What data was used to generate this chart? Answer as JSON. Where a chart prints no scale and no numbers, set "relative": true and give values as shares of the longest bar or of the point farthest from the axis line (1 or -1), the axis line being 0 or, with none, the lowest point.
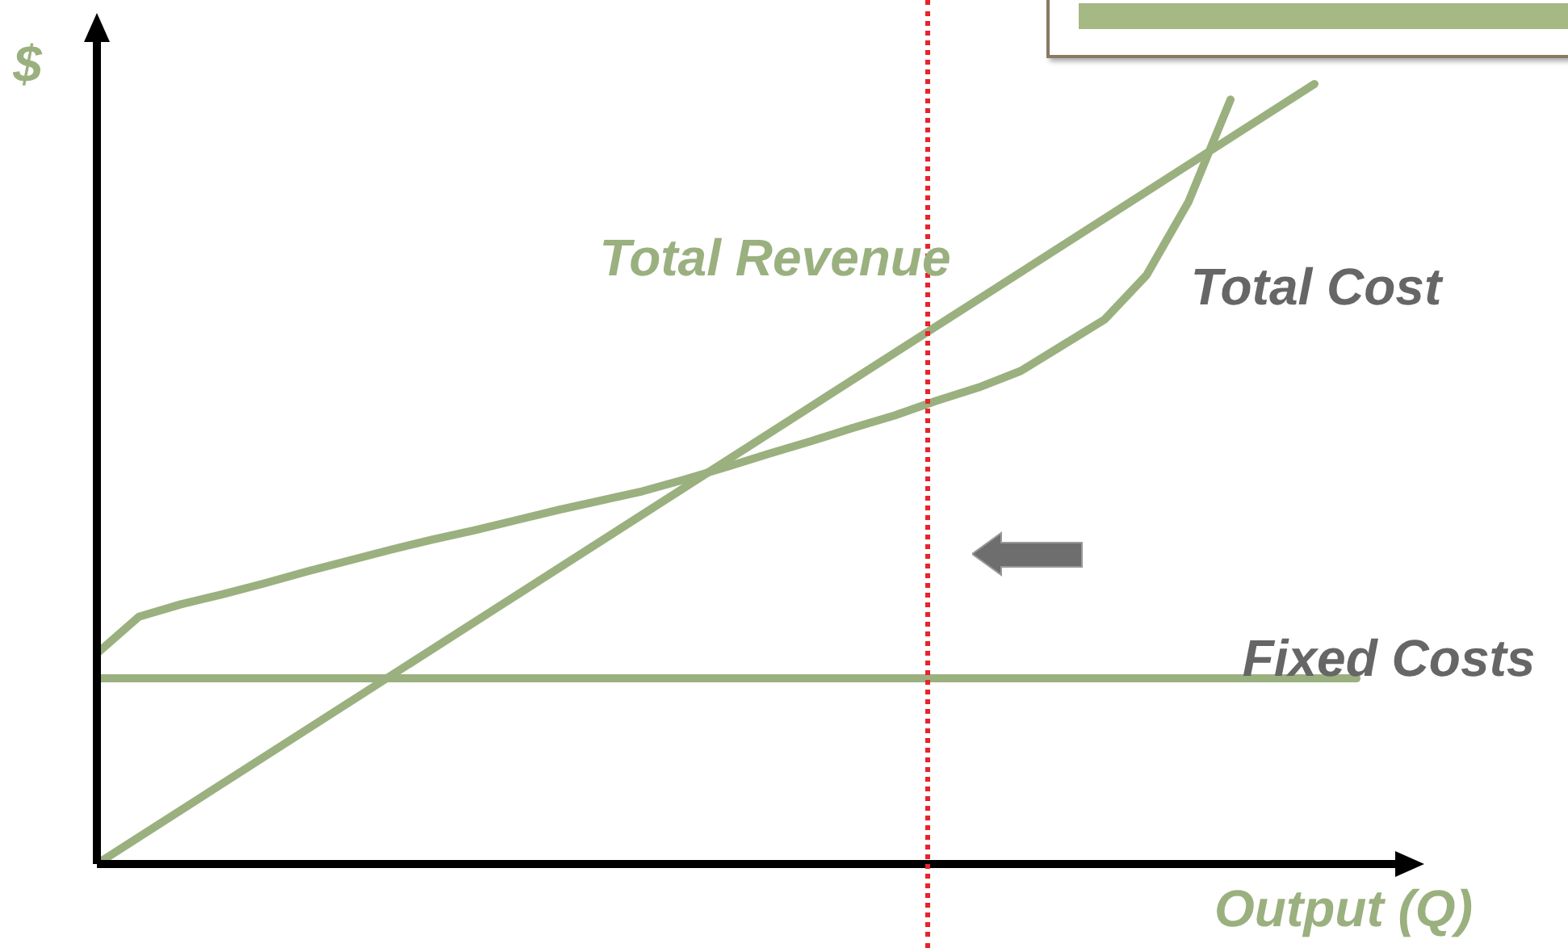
{
  "chart_data": {
    "type": "line",
    "relative": true,
    "xlabel": "Output (Q)",
    "ylabel": "$",
    "tick_labels": false,
    "legend": false,
    "marker": "none",
    "line_style": "solid",
    "categories": [
      null,
      null,
      null,
      null,
      null,
      null,
      null,
      null,
      null,
      null,
      null,
      null,
      null,
      null,
      null,
      null,
      null,
      null,
      null,
      null,
      null,
      null,
      null,
      null,
      null,
      null,
      null,
      null,
      null,
      null,
      null
    ],
    "series": [
      {
        "name": "Total Revenue",
        "color": "#9bb07f",
        "values": [
          0,
          null,
          null,
          null,
          null,
          null,
          null,
          null,
          null,
          null,
          null,
          null,
          null,
          null,
          null,
          null,
          null,
          null,
          null,
          null,
          null,
          null,
          null,
          null,
          null,
          null,
          null,
          null,
          null,
          1,
          null
        ]
      },
      {
        "name": "Total Cost",
        "color": "#9bb07f",
        "values": [
          0.27,
          0.317,
          0.333,
          0.346,
          0.36,
          0.375,
          0.389,
          0.403,
          0.416,
          0.428,
          0.441,
          0.454,
          0.466,
          0.478,
          0.493,
          0.509,
          0.526,
          0.542,
          0.559,
          0.575,
          0.594,
          0.611,
          0.632,
          0.665,
          0.698,
          0.755,
          0.849,
          0.98,
          null,
          null,
          null
        ]
      },
      {
        "name": "Fixed Costs",
        "color": "#9bb07f",
        "values": [
          0.238,
          null,
          null,
          null,
          null,
          null,
          null,
          null,
          null,
          null,
          null,
          null,
          null,
          null,
          null,
          null,
          null,
          null,
          null,
          null,
          null,
          null,
          null,
          null,
          null,
          null,
          null,
          null,
          null,
          null,
          0.238
        ]
      }
    ]
  }
}
